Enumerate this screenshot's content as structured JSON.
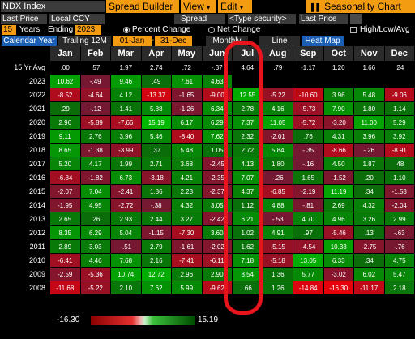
{
  "toolbar": {
    "ticker": "NDX Index",
    "spread_builder": "Spread Builder",
    "view": "View",
    "edit": "Edit",
    "seasonality_chart": "Seasonality Chart"
  },
  "row2": {
    "price_field": "Last Price",
    "currency": "Local CCY",
    "spread": "Spread",
    "type_security": "<Type security>",
    "price_field2": "Last Price"
  },
  "row3": {
    "years_value": "15",
    "years_label": "Years",
    "ending_label": "Ending",
    "ending_value": "2023",
    "percent_change": "Percent Change",
    "net_change": "Net Change",
    "high_low_avg": "High/Low/Avg"
  },
  "tabs": {
    "calendar_year": "Calendar Year",
    "trailing": "Trailing 12M",
    "date_from": "01-Jan",
    "date_to": "31-Dec",
    "monthly": "Monthly",
    "line": "Line",
    "heat_map": "Heat Map"
  },
  "chart_data": {
    "type": "heatmap",
    "months": [
      "Jan",
      "Feb",
      "Mar",
      "Apr",
      "May",
      "Jun",
      "Jul",
      "Aug",
      "Sep",
      "Oct",
      "Nov",
      "Dec"
    ],
    "rows": [
      {
        "label": "15 Yr Avg",
        "values": [
          ".00",
          ".57",
          "1.97",
          "2.74",
          ".72",
          "-.37",
          "4.64",
          ".79",
          "-1.17",
          "1.20",
          "1.66",
          ".24"
        ]
      },
      {
        "label": "2023",
        "values": [
          "10.62",
          "-.49",
          "9.46",
          ".49",
          "7.61",
          "4.63",
          "",
          "",
          "",
          "",
          "",
          ""
        ]
      },
      {
        "label": "2022",
        "values": [
          "-8.52",
          "-4.64",
          "4.12",
          "-13.37",
          "-1.65",
          "-9.00",
          "12.55",
          "-5.22",
          "-10.60",
          "3.96",
          "5.48",
          "-9.06"
        ]
      },
      {
        "label": "2021",
        "values": [
          ".29",
          "-.12",
          "1.41",
          "5.88",
          "-1.26",
          "6.34",
          "2.78",
          "4.16",
          "-5.73",
          "7.90",
          "1.80",
          "1.14"
        ]
      },
      {
        "label": "2020",
        "values": [
          "2.96",
          "-5.89",
          "-7.66",
          "15.19",
          "6.17",
          "6.29",
          "7.37",
          "11.05",
          "-5.72",
          "-3.20",
          "11.00",
          "5.29"
        ]
      },
      {
        "label": "2019",
        "values": [
          "9.11",
          "2.76",
          "3.96",
          "5.46",
          "-8.40",
          "7.62",
          "2.32",
          "-2.01",
          ".76",
          "4.31",
          "3.96",
          "3.92"
        ]
      },
      {
        "label": "2018",
        "values": [
          "8.65",
          "-1.38",
          "-3.99",
          ".37",
          "5.48",
          "1.05",
          "2.72",
          "5.84",
          "-.35",
          "-8.66",
          "-.26",
          "-8.91"
        ]
      },
      {
        "label": "2017",
        "values": [
          "5.20",
          "4.17",
          "1.99",
          "2.71",
          "3.68",
          "-2.45",
          "4.13",
          "1.80",
          "-.16",
          "4.50",
          "1.87",
          ".48"
        ]
      },
      {
        "label": "2016",
        "values": [
          "-6.84",
          "-1.82",
          "6.73",
          "-3.18",
          "4.21",
          "-2.35",
          "7.07",
          "-.26",
          "1.65",
          "-1.52",
          ".20",
          "1.10"
        ]
      },
      {
        "label": "2015",
        "values": [
          "-2.07",
          "7.04",
          "-2.41",
          "1.86",
          "2.23",
          "-2.37",
          "4.37",
          "-6.85",
          "-2.19",
          "11.19",
          ".34",
          "-1.53"
        ]
      },
      {
        "label": "2014",
        "values": [
          "-1.95",
          "4.95",
          "-2.72",
          "-.38",
          "4.32",
          "3.05",
          "1.12",
          "4.88",
          "-.81",
          "2.69",
          "4.32",
          "-2.04"
        ]
      },
      {
        "label": "2013",
        "values": [
          "2.65",
          ".26",
          "2.93",
          "2.44",
          "3.27",
          "-2.42",
          "6.21",
          "-.53",
          "4.70",
          "4.96",
          "3.26",
          "2.99"
        ]
      },
      {
        "label": "2012",
        "values": [
          "8.35",
          "6.29",
          "5.04",
          "-1.15",
          "-7.30",
          "3.60",
          "1.02",
          "4.91",
          ".97",
          "-5.46",
          ".13",
          "-.63"
        ]
      },
      {
        "label": "2011",
        "values": [
          "2.89",
          "3.03",
          "-.51",
          "2.79",
          "-1.61",
          "-2.02",
          "1.62",
          "-5.15",
          "-4.54",
          "10.33",
          "-2.75",
          "-.76"
        ]
      },
      {
        "label": "2010",
        "values": [
          "-6.41",
          "4.46",
          "7.68",
          "2.16",
          "-7.41",
          "-6.11",
          "7.18",
          "-5.18",
          "13.05",
          "6.33",
          ".34",
          "4.75"
        ]
      },
      {
        "label": "2009",
        "values": [
          "-2.59",
          "-5.36",
          "10.74",
          "12.72",
          "2.96",
          "2.90",
          "8.54",
          "1.36",
          "5.77",
          "-3.02",
          "6.02",
          "5.47"
        ]
      },
      {
        "label": "2008",
        "values": [
          "-11.68",
          "-5.22",
          "2.10",
          "7.62",
          "5.99",
          "-9.62",
          ".66",
          "1.26",
          "-14.84",
          "-16.30",
          "-11.17",
          "2.18"
        ]
      }
    ],
    "color_min": -16.3,
    "color_max": 15.19,
    "negative_color": "#c8102e",
    "positive_color": "#00a000",
    "highlighted_month": "Jul"
  },
  "legend": {
    "min_label": "-16.30",
    "max_label": "15.19"
  }
}
